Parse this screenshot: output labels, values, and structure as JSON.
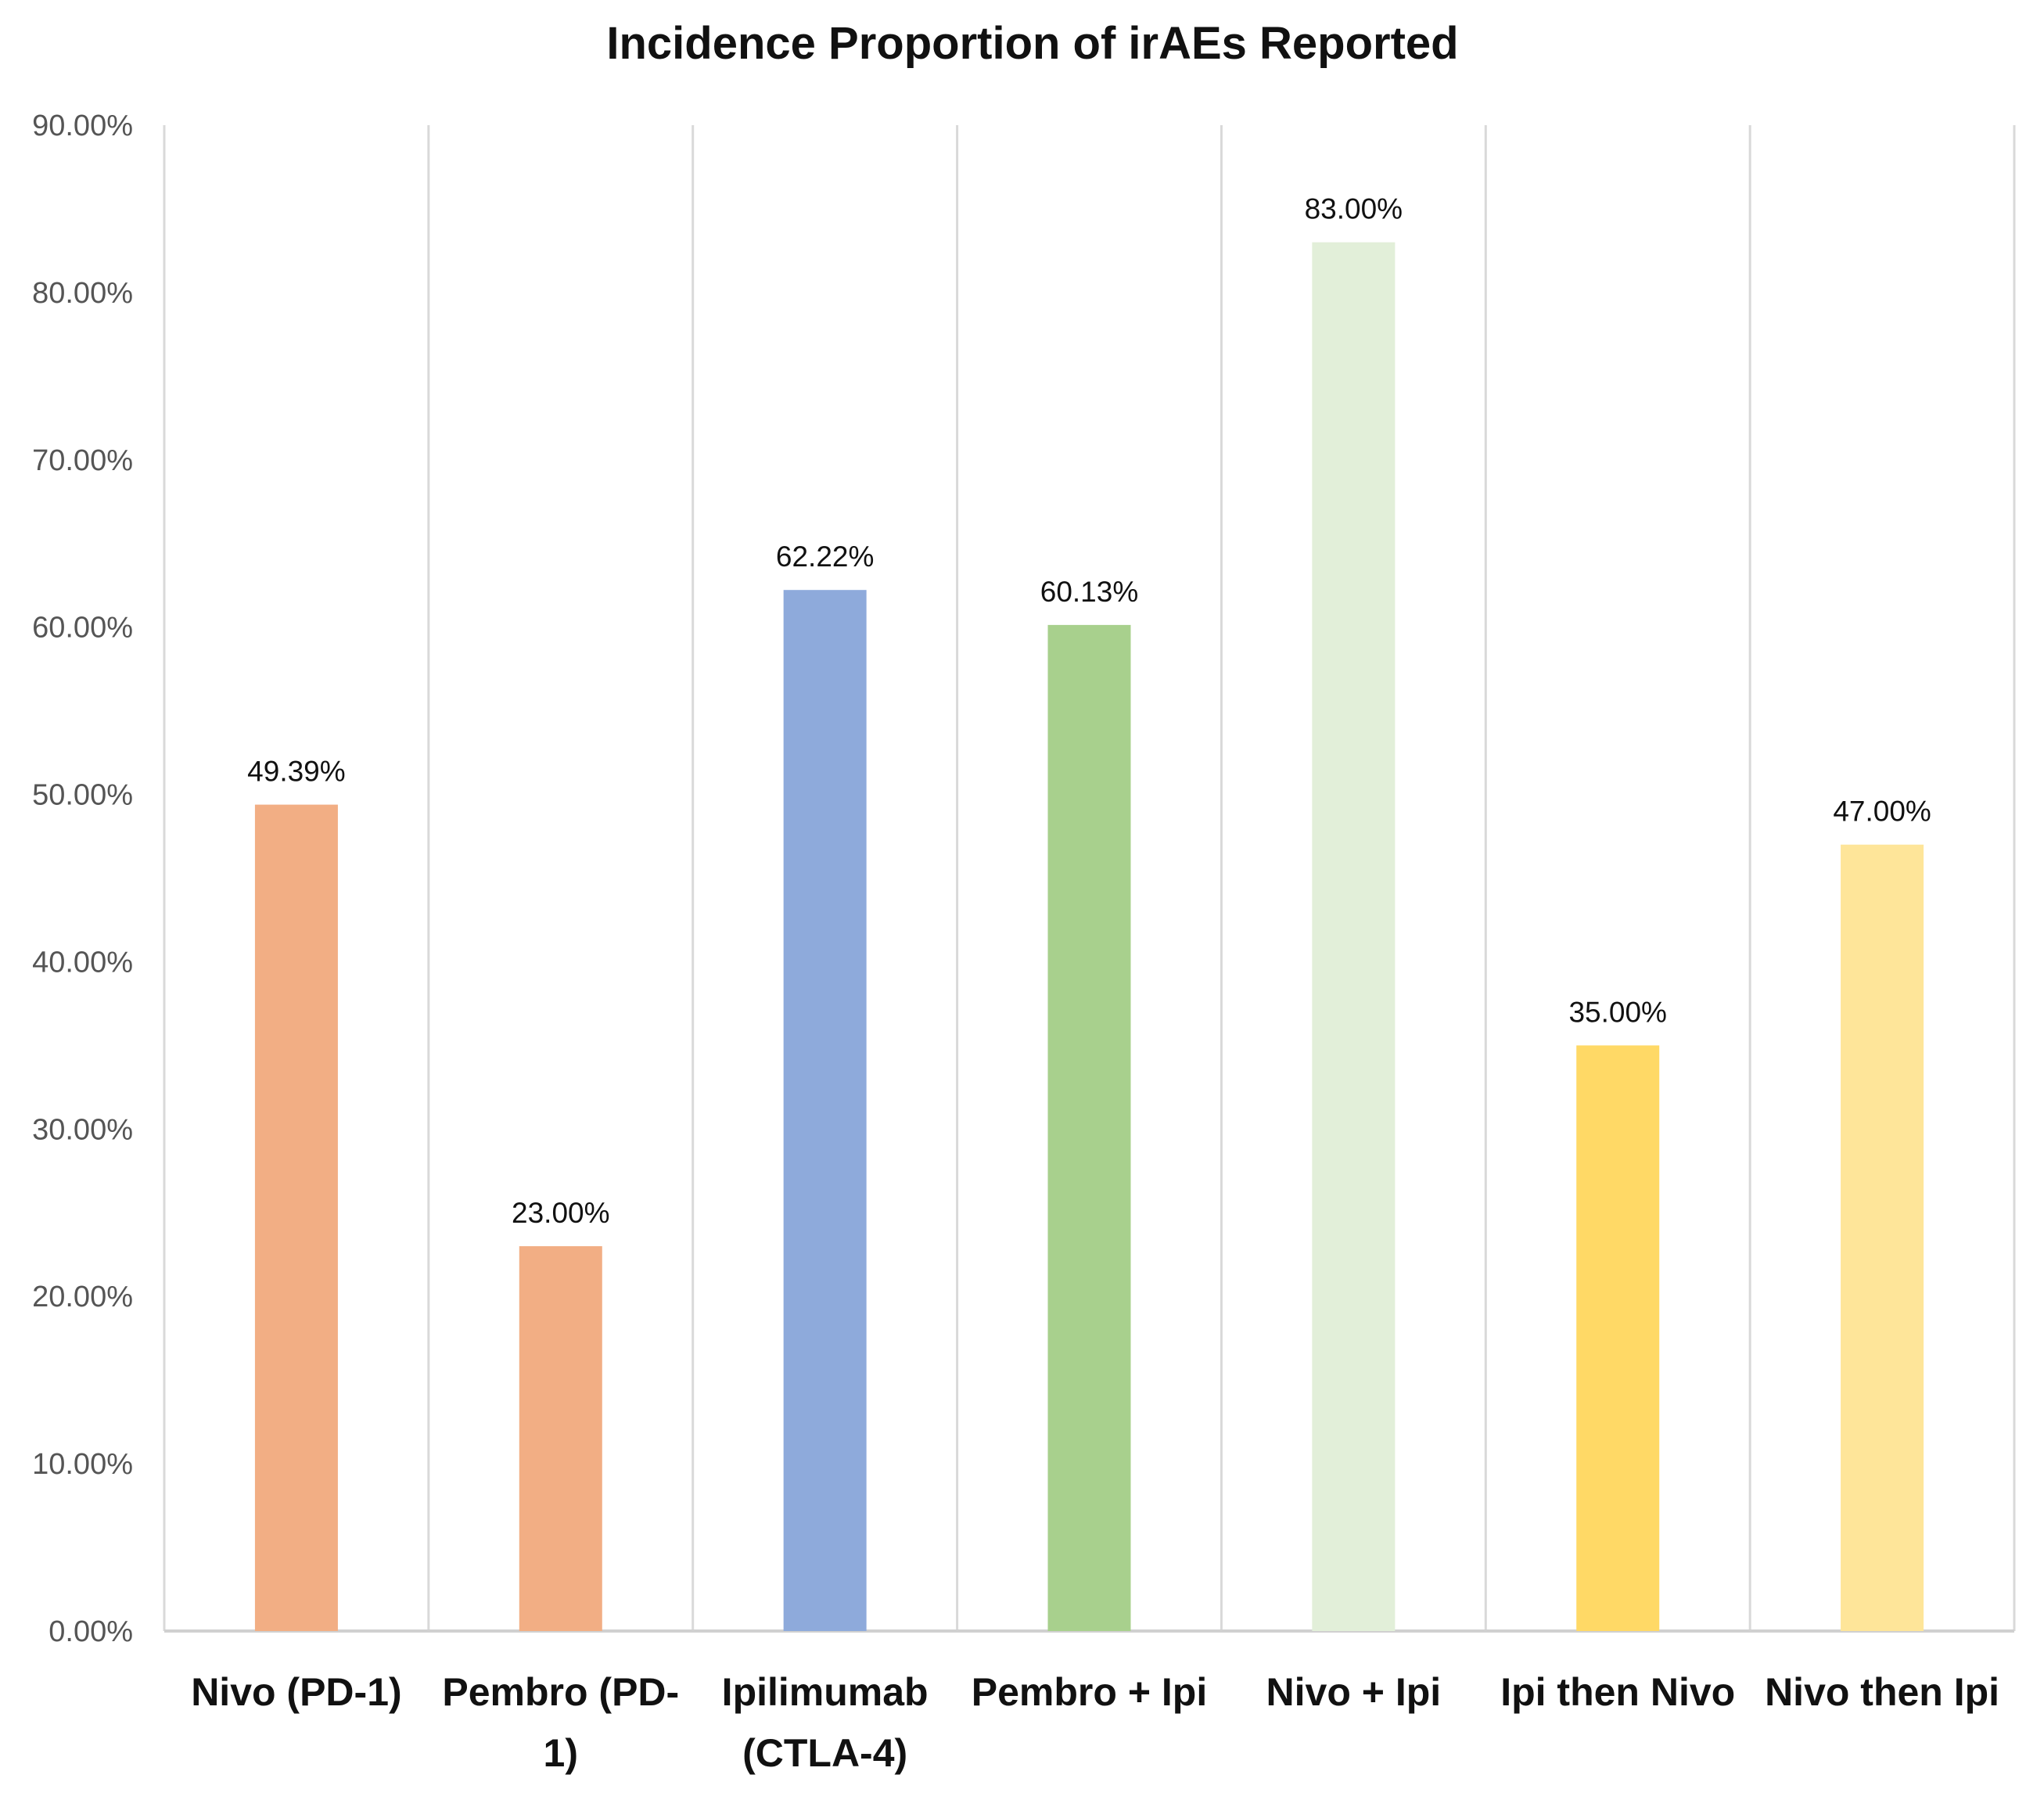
{
  "chart_data": {
    "type": "bar",
    "title": "Incidence Proportion of irAEs Reported",
    "xlabel": "",
    "ylabel": "",
    "ylim": [
      0,
      90
    ],
    "yticks": [
      0,
      10,
      20,
      30,
      40,
      50,
      60,
      70,
      80,
      90
    ],
    "ytick_labels": [
      "0.00%",
      "10.00%",
      "20.00%",
      "30.00%",
      "40.00%",
      "50.00%",
      "60.00%",
      "70.00%",
      "80.00%",
      "90.00%"
    ],
    "grid": "vertical separators between categories",
    "categories": [
      [
        "Nivo (PD-1)"
      ],
      [
        "Pembro (PD-",
        "1)"
      ],
      [
        "Ipilimumab",
        "(CTLA-4)"
      ],
      [
        "Pembro + Ipi"
      ],
      [
        "Nivo + Ipi"
      ],
      [
        "Ipi then Nivo"
      ],
      [
        "Nivo then Ipi"
      ]
    ],
    "values": [
      49.39,
      23.0,
      62.22,
      60.13,
      83.0,
      35.0,
      47.0
    ],
    "data_labels": [
      "49.39%",
      "23.00%",
      "62.22%",
      "60.13%",
      "83.00%",
      "35.00%",
      "47.00%"
    ],
    "colors": [
      "#f2ae84",
      "#f2ae84",
      "#8eaadb",
      "#a8d08d",
      "#e2efd9",
      "#ffd966",
      "#fee599"
    ]
  }
}
